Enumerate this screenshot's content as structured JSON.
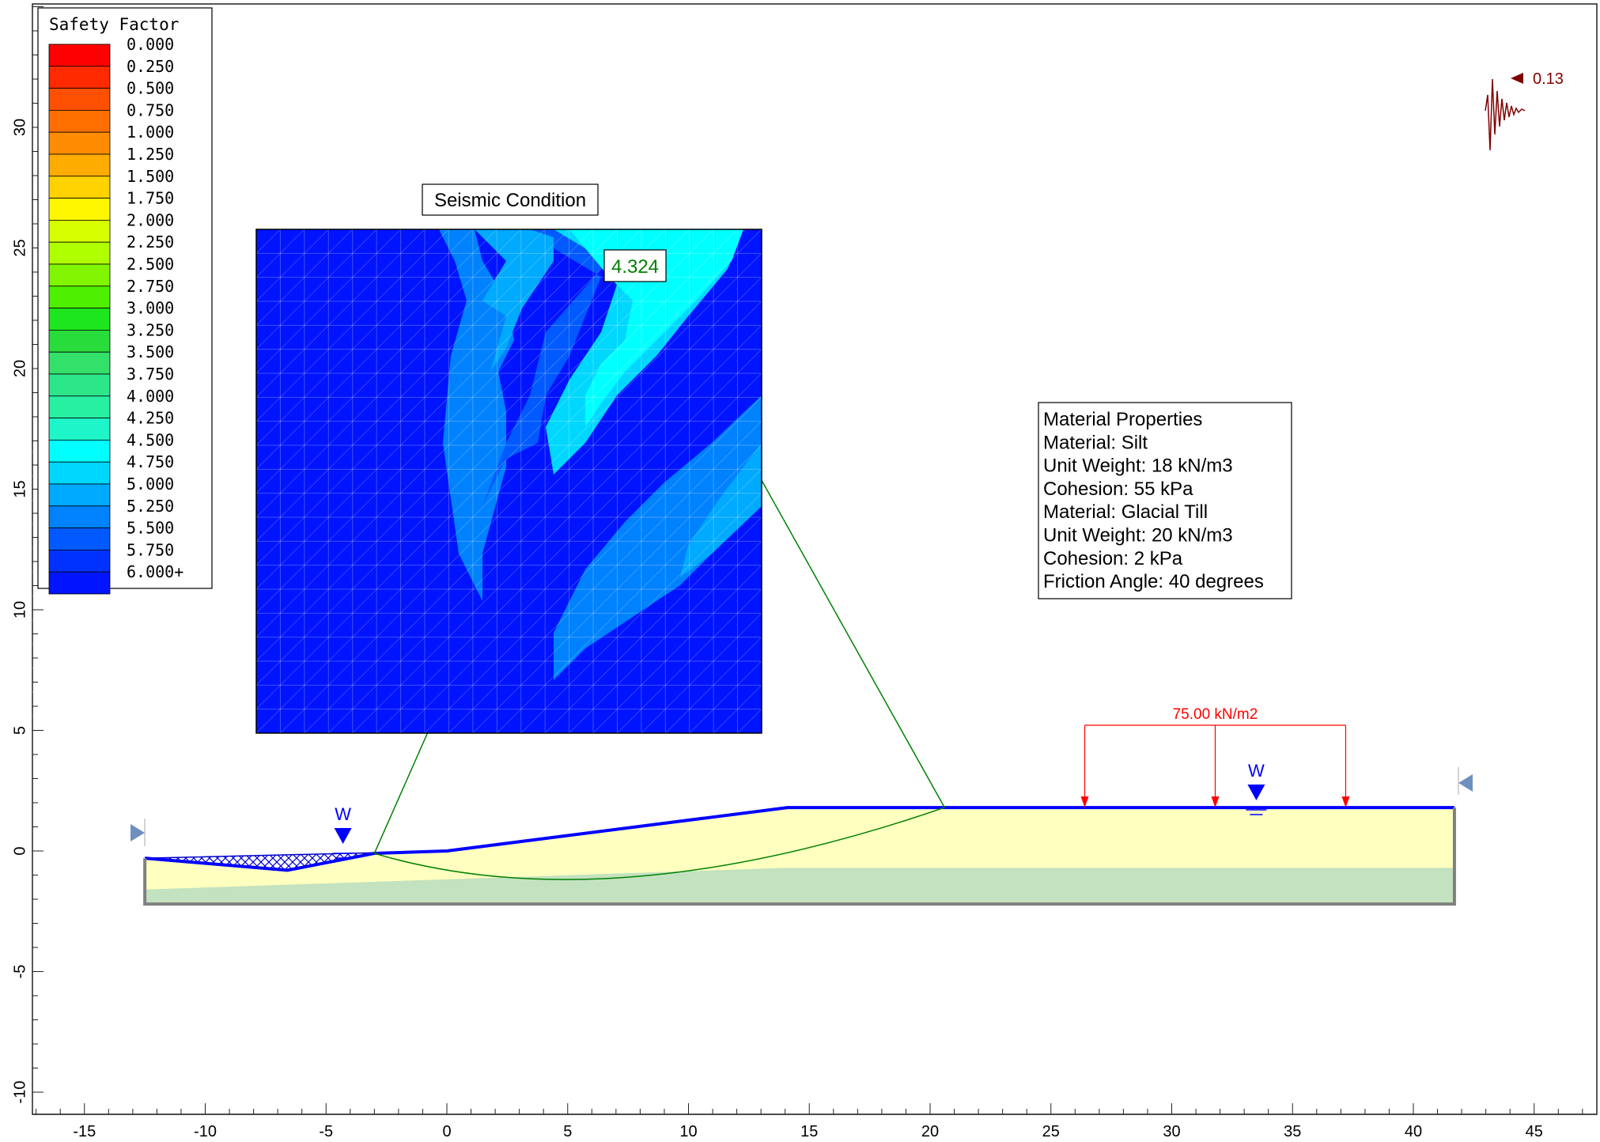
{
  "legend": {
    "title": "Safety Factor",
    "entries": [
      {
        "label": "0.000",
        "color": "#ff0000"
      },
      {
        "label": "0.250",
        "color": "#ff2a00"
      },
      {
        "label": "0.500",
        "color": "#ff4f00"
      },
      {
        "label": "0.750",
        "color": "#ff6f00"
      },
      {
        "label": "1.000",
        "color": "#ff8c00"
      },
      {
        "label": "1.250",
        "color": "#ffab00"
      },
      {
        "label": "1.500",
        "color": "#ffd200"
      },
      {
        "label": "1.750",
        "color": "#fff700"
      },
      {
        "label": "2.000",
        "color": "#d7ff00"
      },
      {
        "label": "2.250",
        "color": "#b0ff00"
      },
      {
        "label": "2.500",
        "color": "#82f500"
      },
      {
        "label": "2.750",
        "color": "#4ef000"
      },
      {
        "label": "3.000",
        "color": "#1ee61e"
      },
      {
        "label": "3.250",
        "color": "#28dc3c"
      },
      {
        "label": "3.500",
        "color": "#33e06a"
      },
      {
        "label": "3.750",
        "color": "#2ee68a"
      },
      {
        "label": "4.000",
        "color": "#28f0a2"
      },
      {
        "label": "4.250",
        "color": "#1ef5c8"
      },
      {
        "label": "4.500",
        "color": "#00ffff"
      },
      {
        "label": "4.750",
        "color": "#00d7ff"
      },
      {
        "label": "5.000",
        "color": "#00aaff"
      },
      {
        "label": "5.250",
        "color": "#0082ff"
      },
      {
        "label": "5.500",
        "color": "#005aff"
      },
      {
        "label": "5.750",
        "color": "#0032ff"
      },
      {
        "label": "6.000+",
        "color": "#0014ff"
      }
    ]
  },
  "seismic": {
    "label": "Seismic Condition",
    "coefficient": "0.13",
    "color": "#800000"
  },
  "min_safety_factor": "4.324",
  "material_properties": {
    "lines": [
      "Material Properties",
      "Material: Silt",
      "Unit Weight: 18 kN/m3",
      "Cohesion: 55 kPa",
      "Material: Glacial Till",
      "Unit Weight: 20 kN/m3",
      "Cohesion: 2 kPa",
      "Friction Angle: 40 degrees"
    ]
  },
  "load": {
    "label": "75.00 kN/m2",
    "x_start": 26.4,
    "x_end": 37.2,
    "y": 1.8,
    "color": "#ff0000"
  },
  "water_markers": [
    {
      "label": "W",
      "x": -4.3,
      "y": 0.1
    },
    {
      "label": "W",
      "x": 33.5,
      "y": 1.9
    }
  ],
  "axes": {
    "x_ticks": [
      "-15",
      "-10",
      "-5",
      "0",
      "5",
      "10",
      "15",
      "20",
      "25",
      "30",
      "35",
      "40",
      "45"
    ],
    "y_ticks": [
      "-10",
      "-5",
      "0",
      "5",
      "10",
      "15",
      "20",
      "25",
      "30"
    ]
  },
  "geometry": {
    "ground_surface": [
      [
        -12.5,
        -0.3
      ],
      [
        -6.6,
        -0.8
      ],
      [
        -3.0,
        -0.1
      ],
      [
        0,
        0
      ],
      [
        14.1,
        1.8
      ],
      [
        41.7,
        1.8
      ]
    ],
    "base_y": -2.2,
    "till_top": [
      [
        -12.5,
        -1.6
      ],
      [
        14,
        -0.7
      ],
      [
        41.7,
        -0.7
      ]
    ]
  },
  "slip_surface": {
    "center": [
      7.4,
      23.5
    ],
    "entry_x": -3.0,
    "exit_x": 20.6,
    "bottom_y": -2.2,
    "color": "#008000"
  },
  "colors": {
    "silt": "#ffffc0",
    "till": "#c3e2bf",
    "boundary": "#0000ff",
    "outline": "#808080"
  }
}
